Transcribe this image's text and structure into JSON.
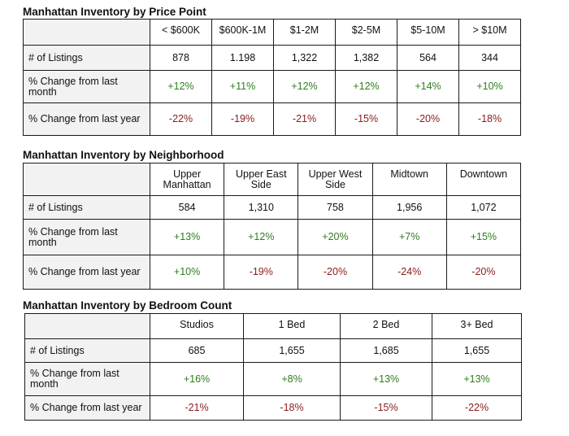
{
  "price": {
    "title": "Manhattan Inventory by Price Point",
    "headers": [
      "< $600K",
      "$600K-1M",
      "$1-2M",
      "$2-5M",
      "$5-10M",
      "> $10M"
    ],
    "rows": [
      {
        "label": "# of Listings",
        "values": [
          "878",
          "1.198",
          "1,322",
          "1,382",
          "564",
          "344"
        ]
      },
      {
        "label": "% Change from last month",
        "values": [
          "+12%",
          "+11%",
          "+12%",
          "+12%",
          "+14%",
          "+10%"
        ]
      },
      {
        "label": "% Change from last year",
        "values": [
          "-22%",
          "-19%",
          "-21%",
          "-15%",
          "-20%",
          "-18%"
        ]
      }
    ]
  },
  "neighborhood": {
    "title": "Manhattan Inventory by Neighborhood",
    "headers": [
      "Upper Manhattan",
      "Upper East Side",
      "Upper West Side",
      "Midtown",
      "Downtown"
    ],
    "rows": [
      {
        "label": "# of Listings",
        "values": [
          "584",
          "1,310",
          "758",
          "1,956",
          "1,072"
        ]
      },
      {
        "label": "% Change from last month",
        "values": [
          "+13%",
          "+12%",
          "+20%",
          "+7%",
          "+15%"
        ]
      },
      {
        "label": "% Change from last year",
        "values": [
          "+10%",
          "-19%",
          "-20%",
          "-24%",
          "-20%"
        ]
      }
    ]
  },
  "bedroom": {
    "title": "Manhattan Inventory by Bedroom Count",
    "headers": [
      "Studios",
      "1 Bed",
      "2 Bed",
      "3+ Bed"
    ],
    "rows": [
      {
        "label": "# of Listings",
        "values": [
          "685",
          "1,655",
          "1,685",
          "1,655"
        ]
      },
      {
        "label": "% Change from last month",
        "values": [
          "+16%",
          "+8%",
          "+13%",
          "+13%"
        ]
      },
      {
        "label": "% Change from last year",
        "values": [
          "-21%",
          "-18%",
          "-15%",
          "-22%"
        ]
      }
    ]
  },
  "colors": {
    "positive": "#2e7d1e",
    "negative": "#8b1a1a",
    "label_bg": "#f2f2f2"
  }
}
